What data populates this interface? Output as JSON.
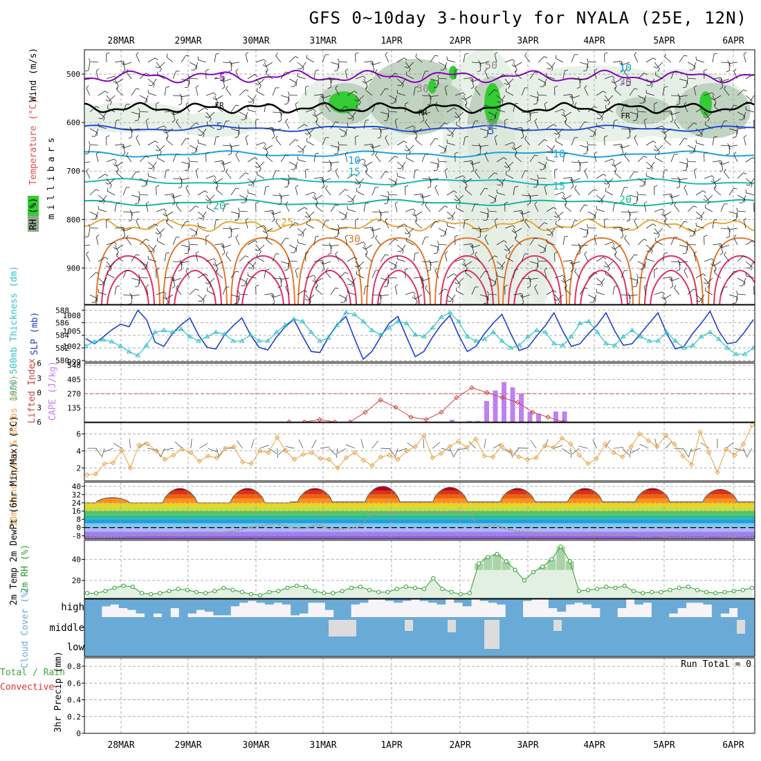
{
  "title": "GFS 0~10day 3-hourly for NYALA (25E, 12N)",
  "dates": [
    "28MAR",
    "29MAR",
    "30MAR",
    "31MAR",
    "1APR",
    "2APR",
    "3APR",
    "4APR",
    "5APR",
    "6APR"
  ],
  "run_total": "Run Total = 0",
  "colors": {
    "rh_dark": "#8fa88f",
    "rh_mid": "#b9ccb9",
    "rh_light": "#e4eee4",
    "rh_green": "#33cc33",
    "freezing": "#000000",
    "temp_minus5": "#8800bb",
    "temp_5": "#1f4fd6",
    "temp_10": "#1aa3dd",
    "temp_15": "#1db8b8",
    "temp_20": "#18b59a",
    "temp_25": "#e8a83a",
    "temp_30": "#e2762a",
    "temp_hot": "#e03060",
    "slp": "#2040c8",
    "thickness": "#30c0c8",
    "lifted": "#d04040",
    "cape": "#c080f0",
    "wind10": "#e8a040",
    "rh2m": "#2e9e2e",
    "cloud": "#6aaad6"
  },
  "chart_data": [
    {
      "type": "heatmap",
      "panel": "upper-air cross-section",
      "ylabel": "millibars",
      "side_labels": [
        "RH (%)",
        "Temperature (°C)",
        "Wind (m/s)"
      ],
      "y_ticks": [
        500,
        600,
        700,
        800,
        900
      ],
      "ylim": [
        450,
        975
      ],
      "contour_labels": [
        {
          "text": "-5",
          "pressure": 507,
          "date": "29MAR"
        },
        {
          "text": "-5",
          "pressure": 518,
          "date": "4APR"
        },
        {
          "text": "FR",
          "pressure": 563,
          "date": "29MAR"
        },
        {
          "text": "FR",
          "pressure": 578,
          "date": "1APR"
        },
        {
          "text": "FR",
          "pressure": 584,
          "date": "4APR"
        },
        {
          "text": "5",
          "pressure": 608,
          "date": "29MAR"
        },
        {
          "text": "5",
          "pressure": 617,
          "date": "2APR"
        },
        {
          "text": "10",
          "pressure": 678,
          "date": "31MAR"
        },
        {
          "text": "10",
          "pressure": 665,
          "date": "3APR"
        },
        {
          "text": "15",
          "pressure": 702,
          "date": "31MAR"
        },
        {
          "text": "15",
          "pressure": 731,
          "date": "3APR"
        },
        {
          "text": "20",
          "pressure": 772,
          "date": "29MAR"
        },
        {
          "text": "20",
          "pressure": 759,
          "date": "4APR"
        },
        {
          "text": "25",
          "pressure": 805,
          "date": "30MAR"
        },
        {
          "text": "30",
          "pressure": 840,
          "date": "31MAR"
        },
        {
          "text": "30",
          "pressure": 530,
          "date": "1APR"
        },
        {
          "text": "30",
          "pressure": 600,
          "date": "2APR"
        },
        {
          "text": "50",
          "pressure": 482,
          "date": "2APR"
        },
        {
          "text": "10",
          "pressure": 487,
          "date": "4APR"
        },
        {
          "text": "30",
          "pressure": 516,
          "date": "4APR"
        }
      ]
    },
    {
      "type": "line",
      "panel": "slp-thickness",
      "ylabel_left": "1000-500mb Thickness (dm)",
      "ylabel_right": "SLP (mb)",
      "left_ticks": [
        580,
        582,
        584,
        586,
        588
      ],
      "right_ticks": [
        999,
        1002,
        1005,
        1008
      ],
      "series": [
        {
          "name": "SLP",
          "values": [
            1003.5,
            1002.5,
            1003.8,
            1005.2,
            1006.3,
            1005.8,
            1009.0,
            1007.2,
            1002.8,
            1002.0,
            1004.5,
            1006.2,
            1007.5,
            1004.2,
            1001.8,
            1001.5,
            1004.2,
            1006.0,
            1007.5,
            1004.2,
            1001.8,
            1001.3,
            1003.8,
            1005.8,
            1007.2,
            1004.0,
            1001.0,
            1000.8,
            1003.8,
            1006.2,
            1007.8,
            1003.5,
            999.5,
            1001.0,
            1003.8,
            1006.5,
            1007.8,
            1003.8,
            1000.0,
            1001.0,
            1003.8,
            1006.2,
            1008.0,
            1004.2,
            1001.0,
            1002.0,
            1004.5,
            1006.5,
            1008.2,
            1004.5,
            1001.2,
            1001.8,
            1004.0,
            1006.0,
            1008.5,
            1005.0,
            1002.0,
            1002.5,
            1004.5,
            1006.2,
            1008.5,
            1005.0,
            1002.2,
            1002.5,
            1004.5,
            1006.5,
            1008.5,
            1004.5,
            1001.5,
            1002.0,
            1004.5,
            1006.5,
            1008.8,
            1005.0,
            1002.5,
            1002.8,
            1004.8,
            1007.2
          ]
        },
        {
          "name": "Thickness",
          "values": [
            582.3,
            583.0,
            583.3,
            583.0,
            582.3,
            581.4,
            580.8,
            582.4,
            584.5,
            584.8,
            584.5,
            585.0,
            583.8,
            583.1,
            583.8,
            584.5,
            584.2,
            583.1,
            583.1,
            584.1,
            583.1,
            583.1,
            584.5,
            585.6,
            586.6,
            586.2,
            584.5,
            583.1,
            583.6,
            585.6,
            587.6,
            587.3,
            586.2,
            584.8,
            584.1,
            585.2,
            586.2,
            585.9,
            584.1,
            583.8,
            585.2,
            586.9,
            587.6,
            586.2,
            583.8,
            583.1,
            583.4,
            584.5,
            583.1,
            582.0,
            582.4,
            583.8,
            584.8,
            584.5,
            582.7,
            582.4,
            583.8,
            585.9,
            586.2,
            584.5,
            582.7,
            582.4,
            583.8,
            584.8,
            583.8,
            583.1,
            583.1,
            584.5,
            583.1,
            582.0,
            582.4,
            583.8,
            584.5,
            583.4,
            582.0,
            581.0,
            581.0,
            582.0
          ]
        }
      ]
    },
    {
      "type": "bar",
      "panel": "cape-lifted",
      "ylabel_left": "Lifted Index",
      "ylabel_right": "CAPE (J/kg)",
      "left_ticks": [
        6,
        3,
        0,
        -3,
        -6
      ],
      "right_ticks": [
        135,
        270,
        405,
        540
      ],
      "cape_series": [
        {
          "day": "2APR",
          "values": [
            20,
            0,
            10,
            10,
            200,
            300,
            380,
            330,
            270,
            100,
            80,
            0,
            100,
            100,
            0
          ]
        }
      ],
      "lifted_index": [
        6,
        6,
        5.5,
        6,
        6,
        4,
        1.5,
        3,
        5,
        5.5,
        4,
        1,
        -1,
        0,
        1,
        2,
        4,
        5,
        6
      ]
    },
    {
      "type": "line",
      "panel": "wind10m",
      "ylabel": "10m Wind Speed & Barbs (m/s)",
      "y_ticks": [
        2,
        4,
        6
      ],
      "series": [
        {
          "name": "10m Wind",
          "values": [
            1.2,
            1.3,
            2.5,
            2.6,
            4.1,
            2.0,
            4.7,
            4.8,
            4.0,
            3.0,
            3.5,
            4.2,
            3.8,
            2.8,
            3.4,
            3.2,
            4.3,
            4.5,
            2.7,
            2.5,
            4.0,
            3.8,
            5.6,
            4.0,
            3.0,
            3.6,
            3.8,
            3.1,
            3.0,
            2.0,
            3.2,
            3.8,
            2.9,
            2.3,
            3.3,
            3.5,
            3.0,
            4.0,
            4.5,
            5.8,
            3.2,
            3.7,
            4.5,
            5.1,
            4.4,
            5.4,
            3.4,
            3.3,
            4.6,
            3.9,
            3.3,
            3.0,
            3.2,
            4.6,
            4.4,
            5.5,
            4.8,
            3.5,
            2.5,
            3.1,
            4.8,
            3.8,
            3.3,
            4.5,
            6.0,
            5.2,
            4.5,
            5.8,
            4.8,
            3.4,
            2.4,
            6.2,
            3.8,
            1.5,
            4.2,
            3.5,
            4.8,
            7.0
          ]
        }
      ]
    },
    {
      "type": "area",
      "panel": "2m-temp",
      "ylabel": "2m Temp 2m DewPt (6hr Min/Max) (°C)",
      "y_ticks": [
        40,
        32,
        24,
        16,
        8,
        0,
        -8
      ],
      "temp_max_by_day": [
        29,
        38,
        38,
        38,
        40,
        39,
        38,
        38,
        38,
        37
      ],
      "temp_min_by_day": [
        24,
        24,
        24,
        25,
        25,
        25,
        25,
        25,
        25,
        25
      ],
      "dewpoint": [
        -10,
        -9,
        -9,
        -8,
        -8,
        -7,
        -7,
        -8,
        -7,
        -6,
        -5,
        -3,
        0,
        2,
        4,
        0,
        -1,
        3,
        -2,
        -1,
        0,
        13,
        14,
        14,
        15,
        15,
        14,
        16,
        15,
        0,
        3,
        -2,
        -4,
        -5,
        -7,
        -6,
        -8,
        -6,
        -7,
        -8,
        -7,
        -9,
        -8,
        -10,
        -9,
        -10,
        -8,
        -9,
        -9,
        -10
      ]
    },
    {
      "type": "area",
      "panel": "2m-rh",
      "ylabel": "2m RH (%)",
      "y_ticks": [
        20,
        40
      ],
      "series": [
        {
          "name": "2m RH",
          "values": [
            8,
            8,
            10,
            13,
            15,
            14,
            8,
            7,
            8,
            10,
            12,
            11,
            9,
            8,
            10,
            13,
            11,
            9,
            7,
            6,
            9,
            10,
            13,
            15,
            14,
            10,
            8,
            8,
            10,
            13,
            14,
            11,
            9,
            9,
            12,
            14,
            13,
            12,
            22,
            12,
            9,
            7,
            8,
            36,
            42,
            45,
            38,
            30,
            20,
            28,
            33,
            40,
            52,
            38,
            10,
            11,
            12,
            14,
            13,
            15,
            10,
            8,
            9,
            9,
            11,
            13,
            14,
            11,
            9,
            8,
            9,
            10,
            11,
            13
          ]
        }
      ]
    },
    {
      "type": "bar",
      "panel": "cloud-cover",
      "ylabel": "Cloud Cover (%)",
      "levels": [
        "high",
        "middle",
        "low"
      ],
      "high": [
        100,
        100,
        40,
        30,
        50,
        60,
        80,
        100,
        80,
        100,
        50,
        100,
        80,
        60,
        70,
        90,
        90,
        40,
        20,
        10,
        20,
        30,
        20,
        30,
        90,
        80,
        20,
        20,
        60,
        100,
        100,
        30,
        20,
        0,
        0,
        10,
        20,
        10,
        0,
        10,
        20,
        30,
        0,
        20,
        40,
        0,
        10,
        20,
        30,
        100,
        100,
        10,
        0,
        0,
        50,
        70,
        30,
        20,
        30,
        50,
        100,
        100,
        50,
        0,
        30,
        20,
        100,
        100,
        80,
        50,
        20,
        20,
        30,
        100,
        80,
        50,
        100,
        100
      ]
    },
    {
      "type": "bar",
      "panel": "precip",
      "ylabel": "3hr Precip (mm)",
      "side_labels": [
        "Total / Rain",
        "Convective"
      ],
      "y_ticks": [
        0,
        0.2,
        0.4,
        0.6,
        0.8
      ],
      "values": []
    }
  ]
}
